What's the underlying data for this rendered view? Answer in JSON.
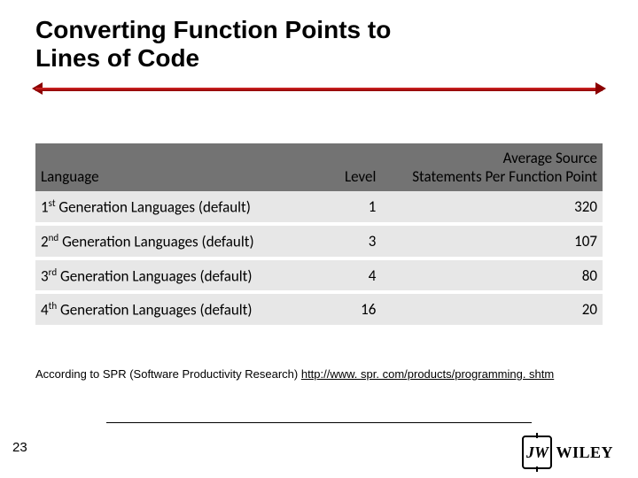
{
  "title_line1": "Converting Function Points to",
  "title_line2": "Lines of Code",
  "table": {
    "columns": {
      "lang": "Language",
      "level": "Level",
      "avg_line1": "Average Source",
      "avg_line2": "Statements Per Function Point"
    },
    "rows": [
      {
        "name_prefix": "1",
        "name_ord": "st",
        "name_suffix": " Generation Languages (default)",
        "level": "1",
        "avg": "320"
      },
      {
        "name_prefix": "2",
        "name_ord": "nd",
        "name_suffix": " Generation Languages (default)",
        "level": "3",
        "avg": "107"
      },
      {
        "name_prefix": "3",
        "name_ord": "rd",
        "name_suffix": " Generation Languages (default)",
        "level": "4",
        "avg": "80"
      },
      {
        "name_prefix": "4",
        "name_ord": "th",
        "name_suffix": " Generation Languages (default)",
        "level": "16",
        "avg": "20"
      }
    ]
  },
  "attribution_text": "According to SPR (Software Productivity Research) ",
  "attribution_link": "http://www. spr. com/products/programming. shtm",
  "page_number": "23",
  "logo": {
    "mark": "JW",
    "brand": "WILEY"
  },
  "colors": {
    "divider": "#8b0000",
    "header_bg": "#737373",
    "row_bg": "#e7e7e7",
    "background": "#ffffff",
    "text": "#000000"
  }
}
